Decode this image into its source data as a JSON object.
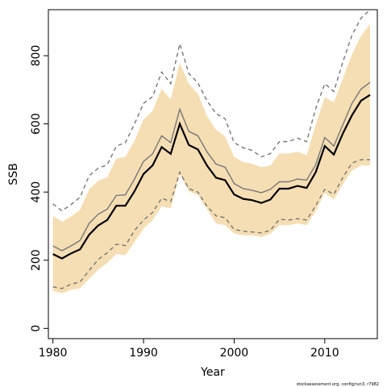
{
  "chart_data": {
    "type": "line",
    "title": "",
    "xlabel": "Year",
    "ylabel": "SSB",
    "xlim": [
      1979.5,
      2015.8
    ],
    "ylim": [
      -30,
      935
    ],
    "xticks": [
      1980,
      1990,
      2000,
      2010
    ],
    "yticks": [
      0,
      200,
      400,
      600,
      800
    ],
    "grid": false,
    "legend": "none",
    "footnote": "stockassessment.org, config/run3, r7982",
    "colors": {
      "band": "#f5deb3",
      "estimate": "#000000",
      "secondary": "#777777",
      "secondary_ci": "#777777"
    },
    "x": [
      1980,
      1981,
      1982,
      1983,
      1984,
      1985,
      1986,
      1987,
      1988,
      1989,
      1990,
      1991,
      1992,
      1993,
      1994,
      1995,
      1996,
      1997,
      1998,
      1999,
      2000,
      2001,
      2002,
      2003,
      2004,
      2005,
      2006,
      2007,
      2008,
      2009,
      2010,
      2011,
      2012,
      2013,
      2014,
      2015
    ],
    "series": [
      {
        "role": "band",
        "lower": [
          110,
          103,
          113,
          118,
          145,
          172,
          192,
          218,
          215,
          253,
          293,
          318,
          358,
          352,
          452,
          402,
          392,
          350,
          308,
          303,
          278,
          273,
          273,
          268,
          278,
          303,
          303,
          308,
          303,
          343,
          398,
          378,
          423,
          463,
          478,
          478
        ],
        "upper": [
          330,
          313,
          328,
          348,
          408,
          433,
          443,
          498,
          503,
          550,
          613,
          638,
          703,
          672,
          778,
          718,
          688,
          623,
          583,
          563,
          503,
          488,
          483,
          473,
          478,
          513,
          513,
          518,
          508,
          598,
          678,
          663,
          733,
          803,
          858,
          893
        ]
      },
      {
        "role": "estimate",
        "values": [
          218,
          205,
          220,
          232,
          275,
          302,
          318,
          360,
          360,
          402,
          453,
          478,
          532,
          512,
          600,
          538,
          525,
          478,
          442,
          435,
          393,
          380,
          376,
          368,
          378,
          410,
          410,
          418,
          412,
          458,
          535,
          510,
          572,
          625,
          668,
          685
        ]
      },
      {
        "role": "secondary",
        "values": [
          242,
          228,
          242,
          258,
          308,
          335,
          350,
          390,
          392,
          438,
          490,
          512,
          565,
          545,
          643,
          578,
          565,
          518,
          482,
          473,
          425,
          410,
          405,
          398,
          408,
          430,
          430,
          438,
          435,
          480,
          560,
          535,
          598,
          660,
          702,
          722
        ]
      },
      {
        "role": "secondary_ci_upper",
        "values": [
          365,
          345,
          363,
          385,
          448,
          470,
          480,
          535,
          545,
          600,
          660,
          680,
          752,
          718,
          835,
          748,
          720,
          668,
          630,
          615,
          545,
          530,
          522,
          503,
          513,
          548,
          548,
          558,
          548,
          645,
          718,
          695,
          782,
          860,
          910,
          935
        ]
      },
      {
        "role": "secondary_ci_lower",
        "values": [
          122,
          117,
          130,
          136,
          170,
          202,
          222,
          247,
          243,
          287,
          318,
          340,
          382,
          372,
          458,
          410,
          400,
          358,
          330,
          325,
          290,
          285,
          283,
          280,
          288,
          320,
          318,
          322,
          318,
          360,
          408,
          393,
          443,
          485,
          495,
          495
        ]
      }
    ]
  }
}
